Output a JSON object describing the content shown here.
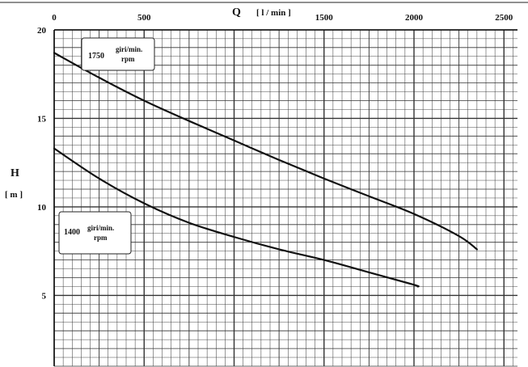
{
  "chart_data": {
    "type": "line",
    "title": "",
    "xlabel": "Q",
    "xunit": "[ l / min ]",
    "ylabel": "H",
    "yunit": "[ m ]",
    "xlim": [
      0,
      2550
    ],
    "ylim": [
      1,
      20
    ],
    "x_ticks": [
      0,
      500,
      1000,
      1500,
      2000,
      2500
    ],
    "y_ticks": [
      5,
      10,
      15,
      20
    ],
    "x_tick_labels": [
      "0",
      "500",
      "1500",
      "2000",
      "2500"
    ],
    "x_tick_label_values": [
      0,
      500,
      1500,
      2000,
      2500
    ],
    "y_tick_labels": [
      "5",
      "10",
      "15",
      "20"
    ],
    "grid": true,
    "grid_minor_x": 50,
    "grid_minor_y": 0.5,
    "series": [
      {
        "name": "1750",
        "unit": "giri/min. rpm",
        "x": [
          0,
          250,
          500,
          750,
          1000,
          1250,
          1500,
          1750,
          2000,
          2250,
          2350
        ],
        "y": [
          18.7,
          17.3,
          16.0,
          14.85,
          13.75,
          12.65,
          11.6,
          10.6,
          9.6,
          8.35,
          7.6
        ]
      },
      {
        "name": "1400",
        "unit": "giri/min. rpm",
        "x": [
          0,
          250,
          500,
          750,
          1000,
          1250,
          1500,
          1750,
          2000,
          2020
        ],
        "y": [
          13.3,
          11.6,
          10.2,
          9.1,
          8.3,
          7.6,
          7.0,
          6.3,
          5.6,
          5.5
        ]
      }
    ],
    "annotations": [
      {
        "series": "1750",
        "speed": "1750",
        "unit_line1": "giri/min.",
        "unit_line2": "rpm",
        "placement": "top-left"
      },
      {
        "series": "1400",
        "speed": "1400",
        "unit_line1": "giri/min.",
        "unit_line2": "rpm",
        "placement": "middle-left"
      }
    ]
  }
}
